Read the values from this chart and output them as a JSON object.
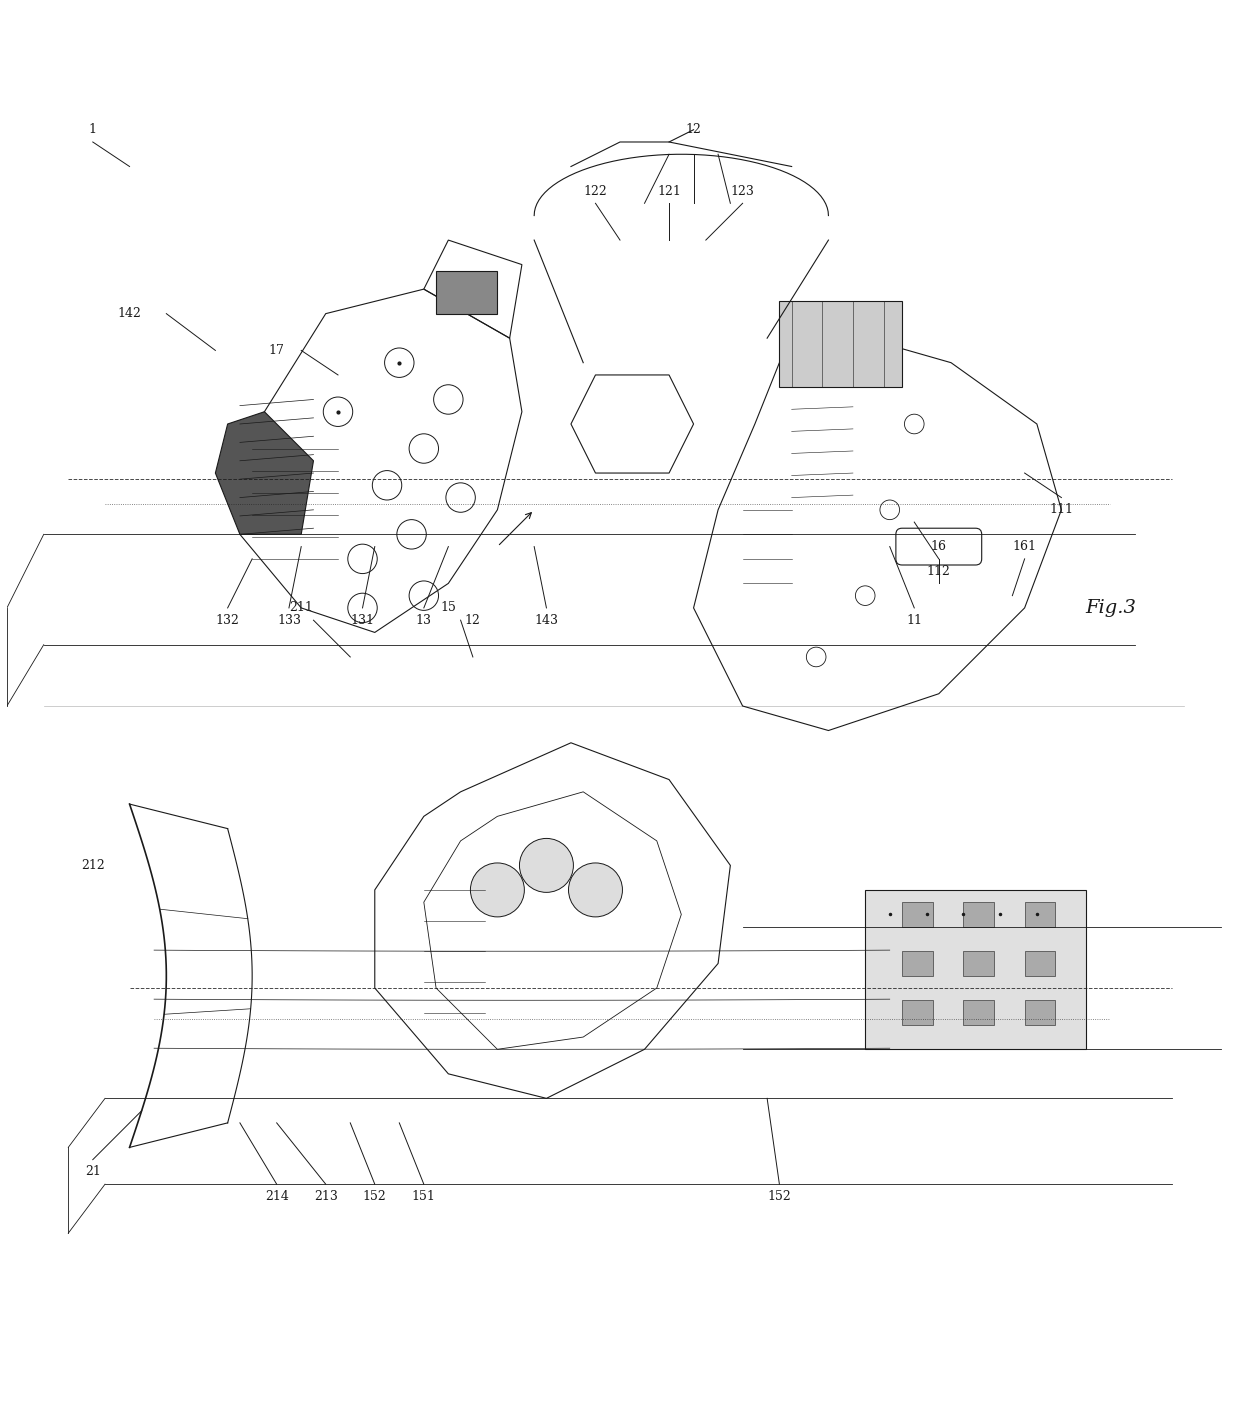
{
  "title": "Fig.3",
  "bg_color": "#ffffff",
  "line_color": "#1a1a1a",
  "fig_width": 12.4,
  "fig_height": 14.12
}
